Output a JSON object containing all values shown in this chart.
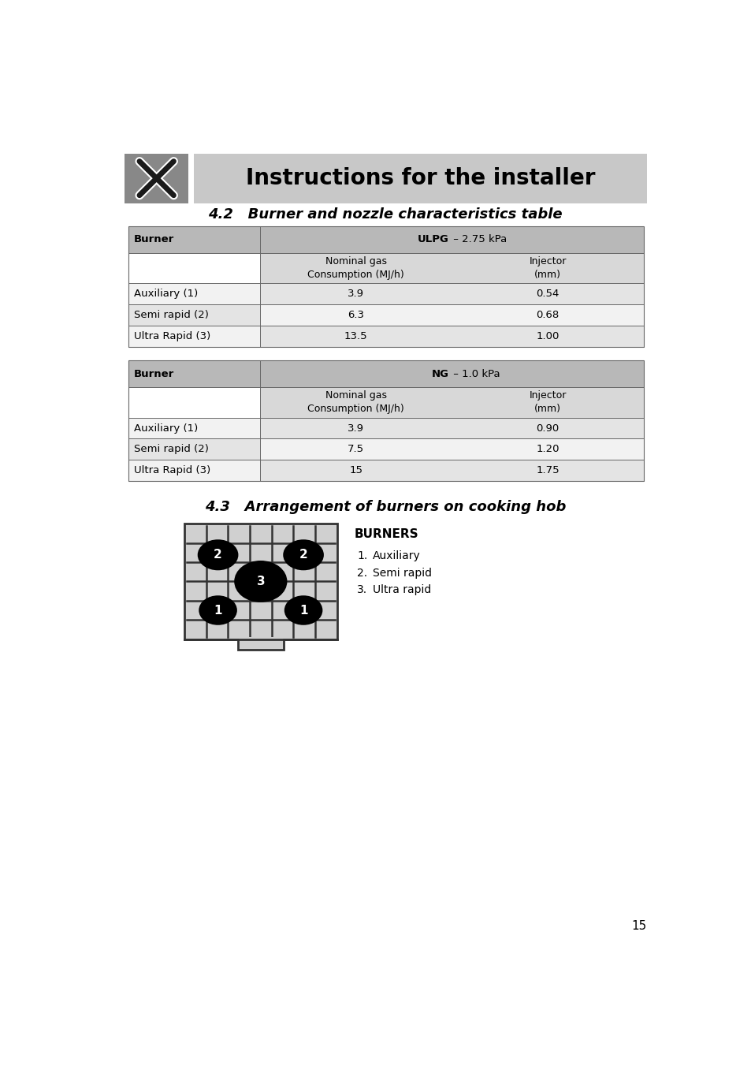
{
  "page_bg": "#ffffff",
  "header_bg": "#c8c8c8",
  "header_text": "Instructions for the installer",
  "header_fontsize": 20,
  "section42_title": "4.2   Burner and nozzle characteristics table",
  "section43_title": "4.3   Arrangement of burners on cooking hob",
  "table_header_bg": "#b8b8b8",
  "table_subheader_bg": "#d8d8d8",
  "table_row_odd_bg": "#e4e4e4",
  "table_row_even_bg": "#f2f2f2",
  "table_border": "#666666",
  "ulpg_label": "ULPG",
  "ulpg_pressure": " – 2.75 kPa",
  "ng_label": "NG",
  "ng_pressure": " – 1.0 kPa",
  "col_burner": "Burner",
  "col_nominal": "Nominal gas\nConsumption (MJ/h)",
  "col_injector": "Injector\n(mm)",
  "ulpg_rows": [
    [
      "Auxiliary (1)",
      "3.9",
      "0.54"
    ],
    [
      "Semi rapid (2)",
      "6.3",
      "0.68"
    ],
    [
      "Ultra Rapid (3)",
      "13.5",
      "1.00"
    ]
  ],
  "ng_rows": [
    [
      "Auxiliary (1)",
      "3.9",
      "0.90"
    ],
    [
      "Semi rapid (2)",
      "7.5",
      "1.20"
    ],
    [
      "Ultra Rapid (3)",
      "15",
      "1.75"
    ]
  ],
  "burners_title": "BURNERS",
  "burners_list": [
    "Auxiliary",
    "Semi rapid",
    "Ultra rapid"
  ],
  "page_number": "15",
  "icon_bg": "#888888",
  "hob_bg": "#d0d0d0"
}
